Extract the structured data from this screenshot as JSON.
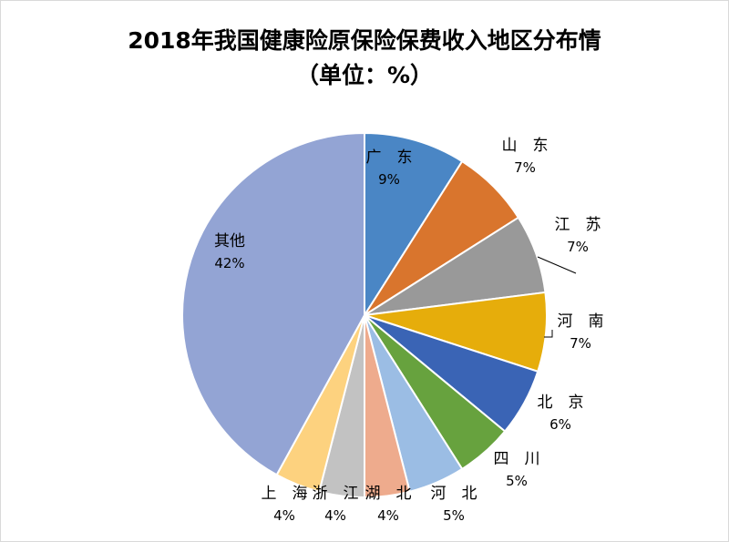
{
  "chart_data": {
    "type": "pie",
    "title": "2018年我国健康险原保险保费收入地区分布情",
    "subtitle": "（单位：%）",
    "legend": "none",
    "slices": [
      {
        "label": "广　东",
        "value": 9,
        "value_label": "9%",
        "color": "#4a86c5"
      },
      {
        "label": "山　东",
        "value": 7,
        "value_label": "7%",
        "color": "#d9752d"
      },
      {
        "label": "江　苏",
        "value": 7,
        "value_label": "7%",
        "color": "#999999"
      },
      {
        "label": "河　南",
        "value": 7,
        "value_label": "7%",
        "color": "#e6ad0b"
      },
      {
        "label": "北　京",
        "value": 6,
        "value_label": "6%",
        "color": "#3a64b5"
      },
      {
        "label": "四　川",
        "value": 5,
        "value_label": "5%",
        "color": "#67a23e"
      },
      {
        "label": "河　北",
        "value": 5,
        "value_label": "5%",
        "color": "#9bbde4"
      },
      {
        "label": "湖　北",
        "value": 4,
        "value_label": "4%",
        "color": "#eeab8d"
      },
      {
        "label": "浙　江",
        "value": 4,
        "value_label": "4%",
        "color": "#c2c2c2"
      },
      {
        "label": "上　海",
        "value": 4,
        "value_label": "4%",
        "color": "#fdd27f"
      },
      {
        "label": "其他",
        "value": 42,
        "value_label": "42%",
        "color": "#93a4d4"
      }
    ]
  }
}
